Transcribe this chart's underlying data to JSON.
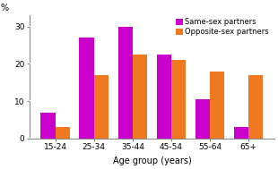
{
  "categories": [
    "15-24",
    "25-34",
    "35-44",
    "45-54",
    "55-64",
    "65+"
  ],
  "same_sex": [
    7,
    27,
    30,
    22.5,
    10.5,
    3
  ],
  "opposite_sex": [
    3,
    17,
    22.5,
    21,
    18,
    17
  ],
  "same_sex_color": "#CC00CC",
  "opposite_sex_color": "#F07820",
  "ylabel": "%",
  "xlabel": "Age group (years)",
  "ylim": [
    0,
    33
  ],
  "yticks": [
    0,
    10,
    20,
    30
  ],
  "legend_same": "Same-sex partners",
  "legend_opposite": "Opposite-sex partners",
  "bar_width": 0.38,
  "grid_color": "#ffffff",
  "background_color": "#ffffff"
}
